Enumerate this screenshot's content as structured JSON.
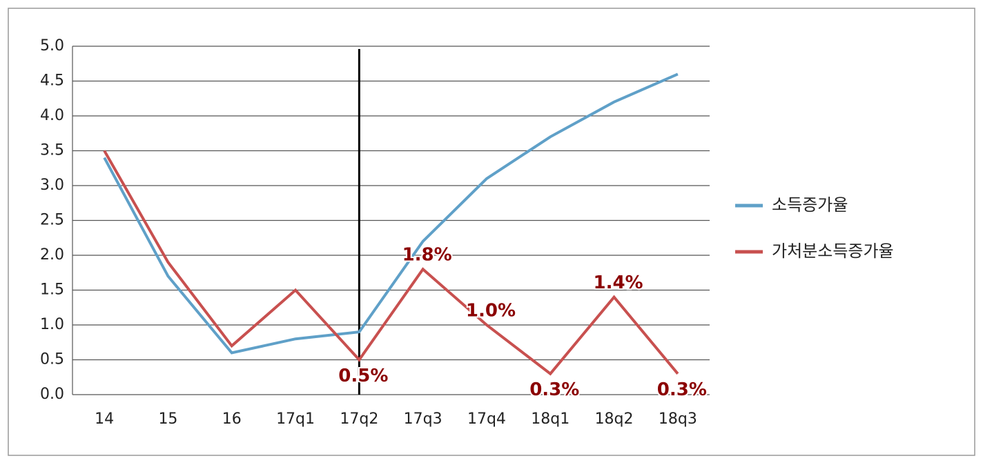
{
  "chart_data": {
    "type": "line",
    "categories": [
      "14",
      "15",
      "16",
      "17q1",
      "17q2",
      "17q3",
      "17q4",
      "18q1",
      "18q2",
      "18q3"
    ],
    "series": [
      {
        "name": "소득증가율",
        "color": "#5fa0c8",
        "values": [
          3.4,
          1.7,
          0.6,
          0.8,
          0.9,
          2.2,
          3.1,
          3.7,
          4.2,
          4.6
        ]
      },
      {
        "name": "가처분소득증가율",
        "color": "#c8504f",
        "values": [
          3.5,
          1.9,
          0.7,
          1.5,
          0.5,
          1.8,
          1.0,
          0.3,
          1.4,
          0.3
        ],
        "value_labels": [
          null,
          null,
          null,
          null,
          "0.5%",
          "1.8%",
          "1.0%",
          "0.3%",
          "1.4%",
          "0.3%"
        ]
      }
    ],
    "ylim": [
      0,
      5
    ],
    "yticks": [
      {
        "value": 0,
        "label": "0.0"
      },
      0.5,
      {
        "value": 1,
        "label": "1.0"
      },
      1.5,
      {
        "value": 2,
        "label": "2.0"
      },
      2.5,
      {
        "value": 3,
        "label": "3.0"
      },
      3.5,
      {
        "value": 4,
        "label": "4.0"
      },
      4.5,
      {
        "value": 5,
        "label": "5.0"
      }
    ],
    "grid": true,
    "legend": "right"
  }
}
